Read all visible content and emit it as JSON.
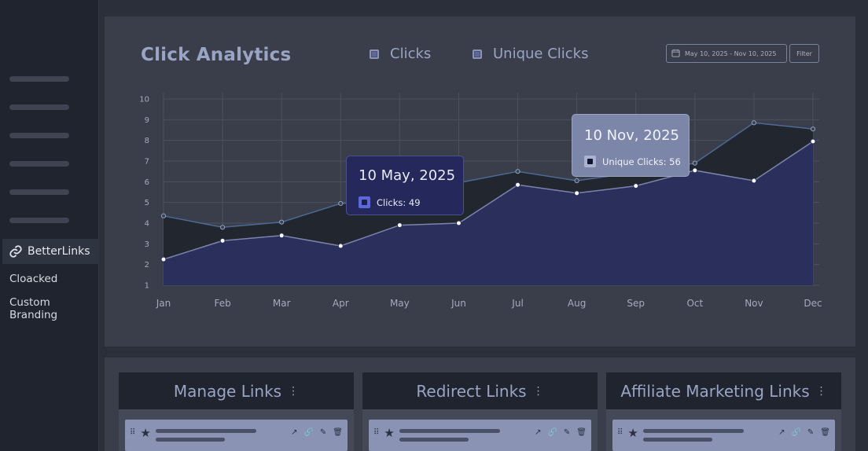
{
  "sidebar": {
    "brand_label": "BetterLinks",
    "links": [
      "Cloacked",
      "Custom Branding"
    ]
  },
  "header": {
    "title": "Click Analytics",
    "legend": [
      "Clicks",
      "Unique Clicks"
    ],
    "date_range": "May 10, 2025 - Nov 10, 2025",
    "filter_label": "Filter"
  },
  "tooltips": {
    "may": {
      "title": "10 May, 2025",
      "label": "Clicks: 49"
    },
    "nov": {
      "title": "10 Nov, 2025",
      "label": "Unique Clicks: 56"
    }
  },
  "cards": [
    {
      "title": "Manage Links",
      "menu": "⋮"
    },
    {
      "title": "Redirect Links",
      "menu": "⋮"
    },
    {
      "title": "Affiliate Marketing Links",
      "menu": "⋮"
    }
  ],
  "colors": {
    "clicks_fill": "#22262f",
    "clicks_line": "#4d6a95",
    "unique_fill": "#2b2f5b",
    "unique_line": "#7c84ad",
    "grid": "#4a505c"
  },
  "chart_data": {
    "type": "area",
    "x": [
      "Jan",
      "Feb",
      "Mar",
      "Apr",
      "May",
      "Jun",
      "Jul",
      "Aug",
      "Sep",
      "Oct",
      "Nov",
      "Dec"
    ],
    "yticks": [
      1,
      2,
      3,
      4,
      5,
      6,
      7,
      8,
      9,
      10
    ],
    "ylim": [
      1,
      10
    ],
    "grid": true,
    "series": [
      {
        "name": "Clicks",
        "values": [
          4.35,
          3.8,
          4.05,
          4.95,
          5.1,
          5.95,
          6.5,
          6.05,
          6.45,
          6.9,
          8.85,
          8.55
        ]
      },
      {
        "name": "Unique Clicks",
        "values": [
          2.25,
          3.15,
          3.4,
          2.9,
          3.9,
          4.0,
          5.85,
          5.45,
          5.8,
          6.55,
          6.05,
          7.95
        ]
      }
    ]
  }
}
